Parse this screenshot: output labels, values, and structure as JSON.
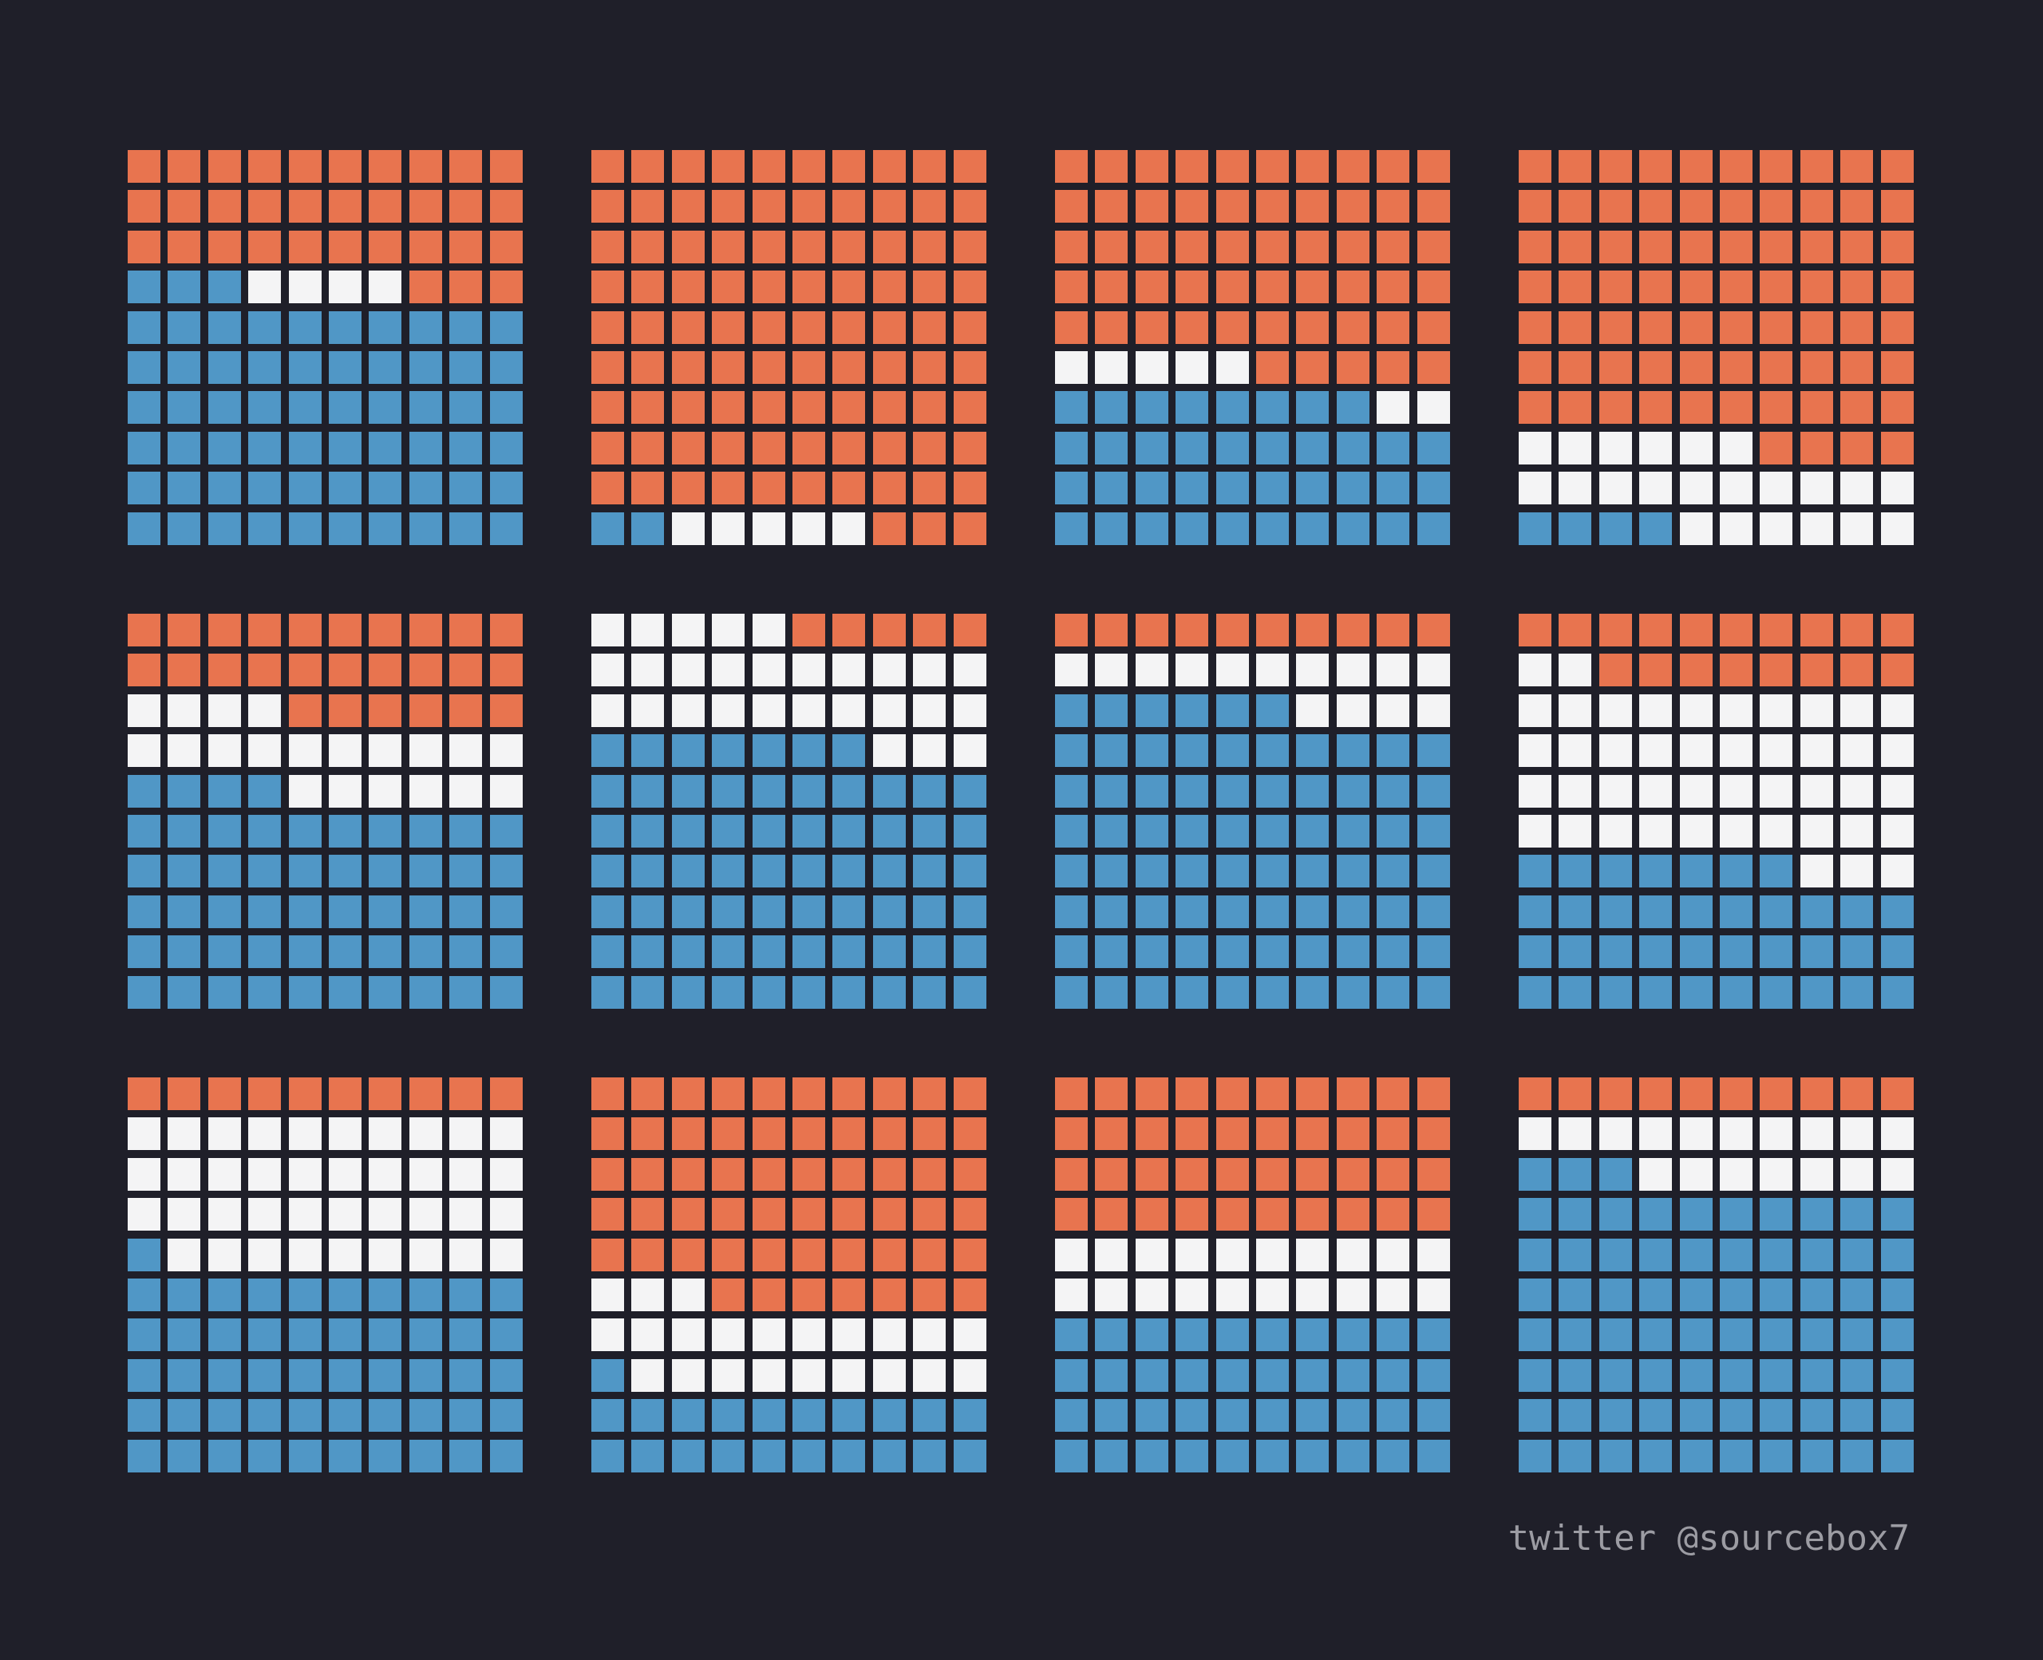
{
  "colors": {
    "background": "#1f1f29",
    "orange": "#e8744f",
    "white": "#f4f4f5",
    "blue": "#5097c6",
    "credit_text": "#9c9ca3"
  },
  "chart_data": {
    "type": "waffle",
    "grid": {
      "rows": 10,
      "cols": 10,
      "layout_rows": 3,
      "layout_cols": 4
    },
    "fill_order": "blue fills from bottom-left upward row by row, then white continues, orange fills the remainder at the top",
    "series_colors": [
      "orange",
      "white",
      "blue"
    ],
    "panels": [
      {
        "blue": 63,
        "white": 4,
        "orange": 33
      },
      {
        "blue": 2,
        "white": 5,
        "orange": 93
      },
      {
        "blue": 38,
        "white": 7,
        "orange": 55
      },
      {
        "blue": 4,
        "white": 22,
        "orange": 74
      },
      {
        "blue": 54,
        "white": 20,
        "orange": 26
      },
      {
        "blue": 67,
        "white": 28,
        "orange": 5
      },
      {
        "blue": 76,
        "white": 14,
        "orange": 10
      },
      {
        "blue": 37,
        "white": 45,
        "orange": 18
      },
      {
        "blue": 51,
        "white": 39,
        "orange": 10
      },
      {
        "blue": 21,
        "white": 22,
        "orange": 57
      },
      {
        "blue": 40,
        "white": 20,
        "orange": 40
      },
      {
        "blue": 73,
        "white": 17,
        "orange": 10
      }
    ]
  },
  "credit": {
    "text": "twitter @sourcebox7"
  }
}
